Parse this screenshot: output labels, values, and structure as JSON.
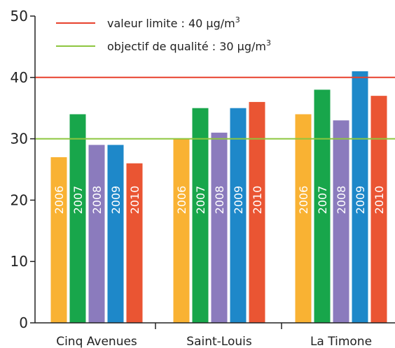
{
  "chart_data": {
    "type": "bar",
    "categories": [
      "Cinq Avenues",
      "Saint-Louis",
      "La Timone"
    ],
    "series": [
      {
        "name": "2006",
        "color": "#f9b233",
        "values": [
          27,
          30,
          34
        ]
      },
      {
        "name": "2007",
        "color": "#18a64b",
        "values": [
          34,
          35,
          38
        ]
      },
      {
        "name": "2008",
        "color": "#8b7bbd",
        "values": [
          29,
          31,
          33
        ]
      },
      {
        "name": "2009",
        "color": "#1e88c9",
        "values": [
          29,
          35,
          41
        ]
      },
      {
        "name": "2010",
        "color": "#ea5533",
        "values": [
          26,
          36,
          37
        ]
      }
    ],
    "yticks": [
      "0",
      "10",
      "20",
      "30",
      "40",
      "50"
    ],
    "ylim": [
      0,
      50
    ],
    "reference_lines": [
      {
        "value": 40,
        "color": "#e8412d",
        "label": "valeur limite : 40 µg/m",
        "superscript": "3"
      },
      {
        "value": 30,
        "color": "#8dc63f",
        "label": "objectif de qualité : 30 µg/m",
        "superscript": "3"
      }
    ],
    "legend_position": "top-left"
  }
}
